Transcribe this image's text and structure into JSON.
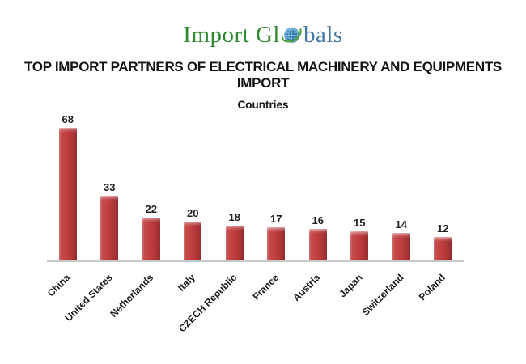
{
  "logo": {
    "text_primary": "Import Gl",
    "text_secondary": "bals",
    "color_primary": "#2f8a33",
    "color_secondary": "#4577a6",
    "icon": "globe-icon"
  },
  "title": "TOP IMPORT PARTNERS OF ELECTRICAL MACHINERY AND EQUIPMENTS IMPORT",
  "subtitle": "Countries",
  "chart_data": {
    "type": "bar",
    "title": "TOP IMPORT PARTNERS OF ELECTRICAL MACHINERY AND EQUIPMENTS IMPORT",
    "subtitle": "Countries",
    "categories": [
      "China",
      "United States",
      "Netherlands",
      "Italy",
      "CZECH Republic",
      "France",
      "Austria",
      "Japan",
      "Switzerland",
      "Poland"
    ],
    "values": [
      68,
      33,
      22,
      20,
      18,
      17,
      16,
      15,
      14,
      12
    ],
    "data_labels": true,
    "bar_color": "#bf3d3f",
    "axis_line_color": "#c9c9c9",
    "ylim": [
      0,
      70
    ],
    "grid": false,
    "legend": false,
    "xlabel_rotation": -45,
    "xlabel": "",
    "ylabel": ""
  }
}
